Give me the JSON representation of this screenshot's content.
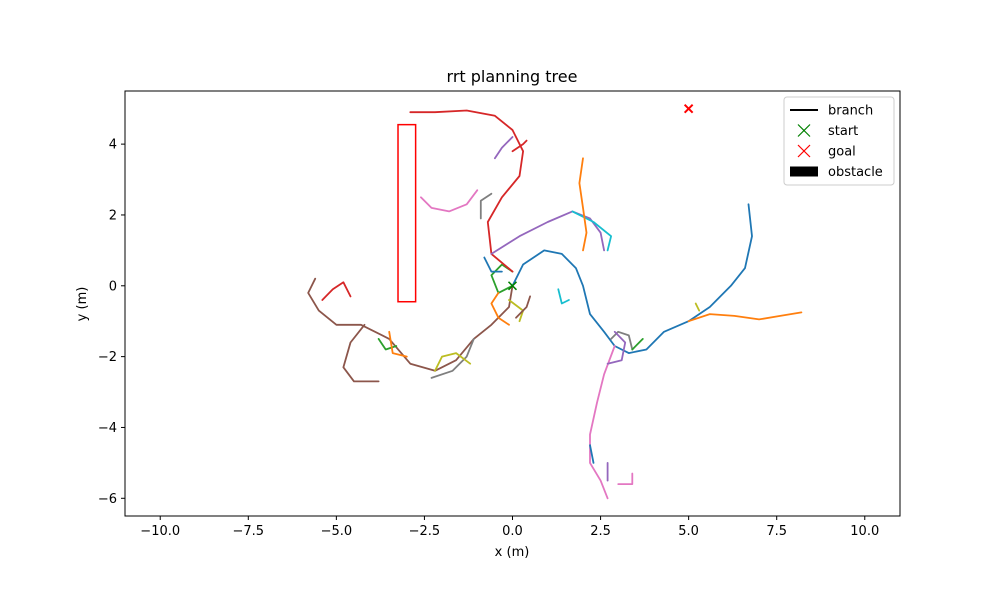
{
  "chart_data": {
    "type": "line",
    "title": "rrt planning tree",
    "xlabel": "x (m)",
    "ylabel": "y (m)",
    "xlim": [
      -11,
      11
    ],
    "ylim": [
      -6.5,
      5.5
    ],
    "xticks": [
      -10.0,
      -7.5,
      -5.0,
      -2.5,
      0.0,
      2.5,
      5.0,
      7.5,
      10.0
    ],
    "xtick_labels": [
      "−10.0",
      "−7.5",
      "−5.0",
      "−2.5",
      "0.0",
      "2.5",
      "5.0",
      "7.5",
      "10.0"
    ],
    "yticks": [
      -6,
      -4,
      -2,
      0,
      2,
      4
    ],
    "ytick_labels": [
      "−6",
      "−4",
      "−2",
      "0",
      "2",
      "4"
    ],
    "grid": false,
    "legend": {
      "placement": "top-right",
      "entries": [
        {
          "label": "branch",
          "marker": "line",
          "color": "#000000"
        },
        {
          "label": "start",
          "marker": "x",
          "color": "#008000"
        },
        {
          "label": "goal",
          "marker": "x",
          "color": "#ff0000"
        },
        {
          "label": "obstacle",
          "marker": "patch",
          "color": "#000000"
        }
      ]
    },
    "start": {
      "x": 0.0,
      "y": 0.0
    },
    "goal": {
      "x": 5.0,
      "y": 5.0
    },
    "obstacles": [
      {
        "x0": -3.25,
        "y0": -0.45,
        "x1": -2.75,
        "y1": 4.55,
        "color": "#ff0000"
      }
    ],
    "branch_colors": [
      "#1f77b4",
      "#ff7f0e",
      "#2ca02c",
      "#d62728",
      "#9467bd",
      "#8c564b",
      "#e377c2",
      "#7f7f7f",
      "#bcbd22",
      "#17becf"
    ],
    "branches": [
      {
        "color_index": 0,
        "points": [
          [
            0.0,
            0.0
          ],
          [
            0.3,
            0.6
          ],
          [
            0.9,
            1.0
          ],
          [
            1.4,
            0.9
          ],
          [
            1.8,
            0.5
          ],
          [
            2.0,
            0.0
          ],
          [
            2.2,
            -0.8
          ],
          [
            2.6,
            -1.3
          ],
          [
            2.9,
            -1.7
          ],
          [
            3.3,
            -1.9
          ],
          [
            3.8,
            -1.8
          ],
          [
            4.3,
            -1.3
          ],
          [
            5.0,
            -1.0
          ],
          [
            5.6,
            -0.6
          ],
          [
            6.2,
            0.0
          ],
          [
            6.6,
            0.5
          ],
          [
            6.8,
            1.4
          ],
          [
            6.7,
            2.3
          ]
        ]
      },
      {
        "color_index": 1,
        "points": [
          [
            5.0,
            -1.0
          ],
          [
            5.6,
            -0.8
          ],
          [
            6.3,
            -0.85
          ],
          [
            7.0,
            -0.95
          ],
          [
            7.6,
            -0.85
          ],
          [
            8.2,
            -0.75
          ]
        ]
      },
      {
        "color_index": 2,
        "points": [
          [
            0.0,
            0.0
          ],
          [
            -0.4,
            -0.2
          ],
          [
            -0.6,
            0.3
          ],
          [
            -0.3,
            0.6
          ],
          [
            0.0,
            0.4
          ]
        ]
      },
      {
        "color_index": 3,
        "points": [
          [
            0.0,
            0.4
          ],
          [
            -0.6,
            0.9
          ],
          [
            -0.7,
            1.8
          ],
          [
            -0.3,
            2.5
          ],
          [
            0.2,
            3.1
          ],
          [
            0.3,
            3.8
          ],
          [
            0.0,
            4.4
          ],
          [
            -0.5,
            4.8
          ],
          [
            -1.3,
            4.95
          ],
          [
            -2.2,
            4.9
          ],
          [
            -2.9,
            4.9
          ]
        ]
      },
      {
        "color_index": 4,
        "points": [
          [
            -0.6,
            0.9
          ],
          [
            0.2,
            1.4
          ],
          [
            1.0,
            1.8
          ],
          [
            1.7,
            2.1
          ],
          [
            2.2,
            1.9
          ],
          [
            2.5,
            1.5
          ],
          [
            2.6,
            1.0
          ]
        ]
      },
      {
        "color_index": 5,
        "points": [
          [
            0.0,
            0.0
          ],
          [
            -0.1,
            -0.6
          ],
          [
            -0.6,
            -1.1
          ],
          [
            -1.1,
            -1.5
          ],
          [
            -1.6,
            -2.1
          ],
          [
            -2.2,
            -2.4
          ],
          [
            -2.9,
            -2.2
          ],
          [
            -3.5,
            -1.5
          ],
          [
            -4.3,
            -1.1
          ],
          [
            -5.0,
            -1.1
          ],
          [
            -5.5,
            -0.7
          ],
          [
            -5.8,
            -0.2
          ],
          [
            -5.6,
            0.2
          ]
        ]
      },
      {
        "color_index": 6,
        "points": [
          [
            2.9,
            -1.7
          ],
          [
            2.6,
            -2.5
          ],
          [
            2.4,
            -3.3
          ],
          [
            2.2,
            -4.2
          ],
          [
            2.2,
            -5.0
          ],
          [
            2.5,
            -5.5
          ],
          [
            2.7,
            -6.0
          ]
        ]
      },
      {
        "color_index": 7,
        "points": [
          [
            -1.1,
            -1.5
          ],
          [
            -1.3,
            -2.0
          ],
          [
            -1.7,
            -2.4
          ],
          [
            -2.3,
            -2.6
          ]
        ]
      },
      {
        "color_index": 8,
        "points": [
          [
            -2.2,
            -2.4
          ],
          [
            -2.0,
            -2.0
          ],
          [
            -1.6,
            -1.9
          ],
          [
            -1.2,
            -2.2
          ]
        ]
      },
      {
        "color_index": 9,
        "points": [
          [
            1.7,
            2.1
          ],
          [
            2.3,
            1.8
          ],
          [
            2.8,
            1.4
          ],
          [
            2.7,
            1.0
          ]
        ]
      },
      {
        "color_index": 6,
        "points": [
          [
            -2.6,
            2.5
          ],
          [
            -2.3,
            2.2
          ],
          [
            -1.8,
            2.1
          ],
          [
            -1.3,
            2.3
          ],
          [
            -1.0,
            2.7
          ]
        ]
      },
      {
        "color_index": 1,
        "points": [
          [
            2.0,
            1.0
          ],
          [
            2.1,
            1.5
          ],
          [
            2.0,
            2.2
          ],
          [
            1.9,
            2.9
          ],
          [
            2.0,
            3.6
          ]
        ]
      },
      {
        "color_index": 0,
        "points": [
          [
            2.2,
            -4.5
          ],
          [
            2.3,
            -5.0
          ]
        ]
      },
      {
        "color_index": 4,
        "points": [
          [
            2.7,
            -5.0
          ],
          [
            2.7,
            -5.5
          ]
        ]
      },
      {
        "color_index": 6,
        "points": [
          [
            3.0,
            -5.6
          ],
          [
            3.4,
            -5.6
          ],
          [
            3.4,
            -5.3
          ]
        ]
      },
      {
        "color_index": 5,
        "points": [
          [
            -4.2,
            -1.1
          ],
          [
            -4.6,
            -1.6
          ],
          [
            -4.8,
            -2.3
          ],
          [
            -4.5,
            -2.7
          ],
          [
            -3.8,
            -2.7
          ]
        ]
      },
      {
        "color_index": 3,
        "points": [
          [
            -5.4,
            -0.4
          ],
          [
            -5.1,
            -0.1
          ],
          [
            -4.8,
            0.1
          ],
          [
            -4.6,
            -0.3
          ]
        ]
      },
      {
        "color_index": 2,
        "points": [
          [
            -3.8,
            -1.5
          ],
          [
            -3.6,
            -1.8
          ],
          [
            -3.3,
            -1.7
          ]
        ]
      },
      {
        "color_index": 1,
        "points": [
          [
            -3.5,
            -1.3
          ],
          [
            -3.4,
            -1.9
          ],
          [
            -3.0,
            -2.0
          ]
        ]
      },
      {
        "color_index": 7,
        "points": [
          [
            -0.6,
            2.6
          ],
          [
            -0.9,
            2.4
          ],
          [
            -0.9,
            1.9
          ]
        ]
      },
      {
        "color_index": 4,
        "points": [
          [
            -0.5,
            3.6
          ],
          [
            -0.3,
            3.9
          ],
          [
            0.0,
            4.2
          ]
        ]
      },
      {
        "color_index": 3,
        "points": [
          [
            0.0,
            3.8
          ],
          [
            0.3,
            4.0
          ],
          [
            0.4,
            4.1
          ]
        ]
      },
      {
        "color_index": 8,
        "points": [
          [
            -0.1,
            -0.4
          ],
          [
            0.3,
            -0.7
          ],
          [
            0.2,
            -1.0
          ]
        ]
      },
      {
        "color_index": 9,
        "points": [
          [
            1.3,
            -0.1
          ],
          [
            1.4,
            -0.5
          ],
          [
            1.6,
            -0.4
          ]
        ]
      },
      {
        "color_index": 7,
        "points": [
          [
            3.4,
            -1.8
          ],
          [
            3.3,
            -1.4
          ],
          [
            3.0,
            -1.3
          ],
          [
            2.8,
            -1.5
          ]
        ]
      },
      {
        "color_index": 4,
        "points": [
          [
            2.9,
            -1.3
          ],
          [
            3.2,
            -1.6
          ],
          [
            3.1,
            -2.1
          ],
          [
            2.7,
            -2.2
          ]
        ]
      },
      {
        "color_index": 2,
        "points": [
          [
            3.4,
            -1.8
          ],
          [
            3.7,
            -1.5
          ]
        ]
      },
      {
        "color_index": 8,
        "points": [
          [
            5.2,
            -0.5
          ],
          [
            5.3,
            -0.7
          ]
        ]
      },
      {
        "color_index": 1,
        "points": [
          [
            -0.4,
            -0.2
          ],
          [
            -0.6,
            -0.5
          ],
          [
            -0.4,
            -0.9
          ],
          [
            -0.1,
            -1.1
          ]
        ]
      },
      {
        "color_index": 5,
        "points": [
          [
            0.1,
            -0.9
          ],
          [
            0.4,
            -0.6
          ],
          [
            0.5,
            -0.3
          ]
        ]
      },
      {
        "color_index": 0,
        "points": [
          [
            -0.8,
            0.8
          ],
          [
            -0.6,
            0.4
          ],
          [
            -0.3,
            0.4
          ]
        ]
      }
    ]
  }
}
